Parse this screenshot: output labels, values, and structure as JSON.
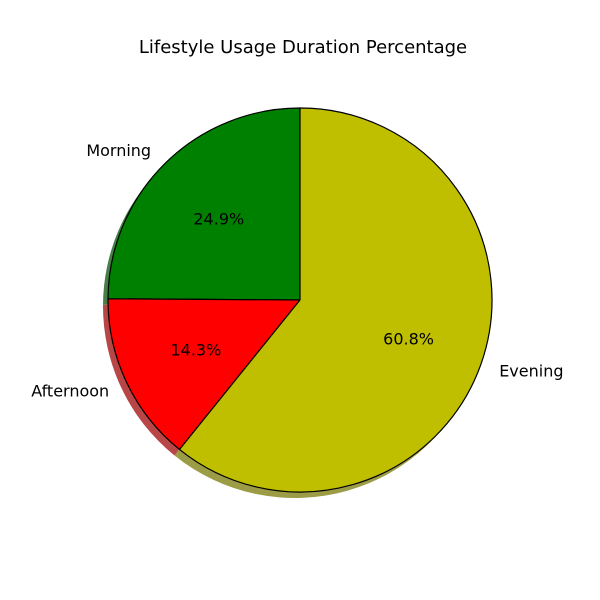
{
  "chart_data": {
    "type": "pie",
    "title": "Lifestyle Usage Duration Percentage",
    "categories": [
      "Morning",
      "Afternoon",
      "Evening"
    ],
    "values": [
      24.9,
      14.3,
      60.8
    ],
    "percent_labels": [
      "24.9%",
      "14.3%",
      "60.8%"
    ],
    "colors": [
      "#008000",
      "#ff0000",
      "#bfbf00"
    ],
    "start_angle_deg": 90,
    "direction": "counterclockwise",
    "shadow": true,
    "edge_color": "#000000"
  }
}
